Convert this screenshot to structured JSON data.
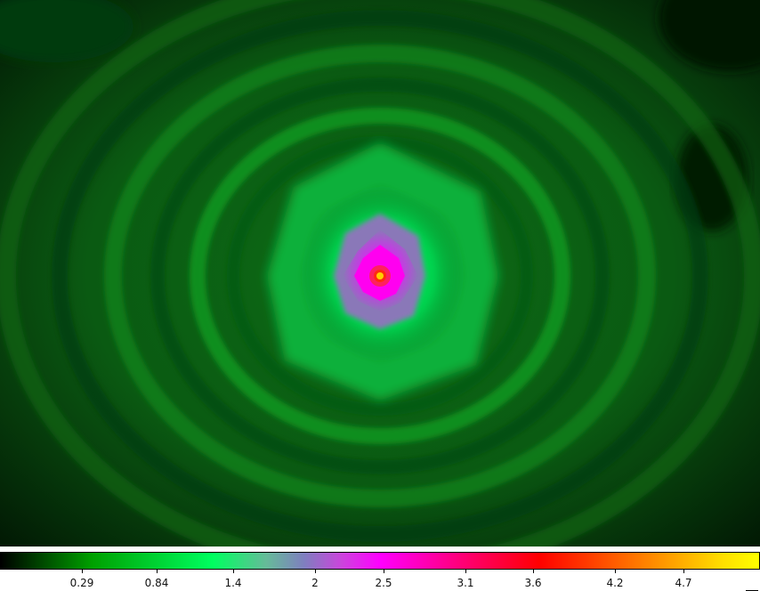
{
  "colormap": {
    "name": "heat-rainbow",
    "stops": [
      "#000000",
      "#00a000",
      "#00ff60",
      "#7f7fbf",
      "#ff00ff",
      "#ff0080",
      "#ff0000",
      "#ff6600",
      "#ffff00"
    ]
  },
  "colorbar": {
    "ticks": [
      {
        "label": "0.29",
        "value": 0.29
      },
      {
        "label": "0.84",
        "value": 0.84
      },
      {
        "label": "1.4",
        "value": 1.4
      },
      {
        "label": "2",
        "value": 2
      },
      {
        "label": "2.5",
        "value": 2.5
      },
      {
        "label": "3.1",
        "value": 3.1
      },
      {
        "label": "3.6",
        "value": 3.6
      },
      {
        "label": "4.2",
        "value": 4.2
      },
      {
        "label": "4.7",
        "value": 4.7
      }
    ]
  },
  "image": {
    "description_colors": {
      "background": "#0a3a0a",
      "ring": "#0f7a1a",
      "halo": "#00e85a",
      "inner": "#8a78b8",
      "core": "#ff10e8",
      "peak": "#ff2020",
      "center": "#ffd800"
    }
  }
}
